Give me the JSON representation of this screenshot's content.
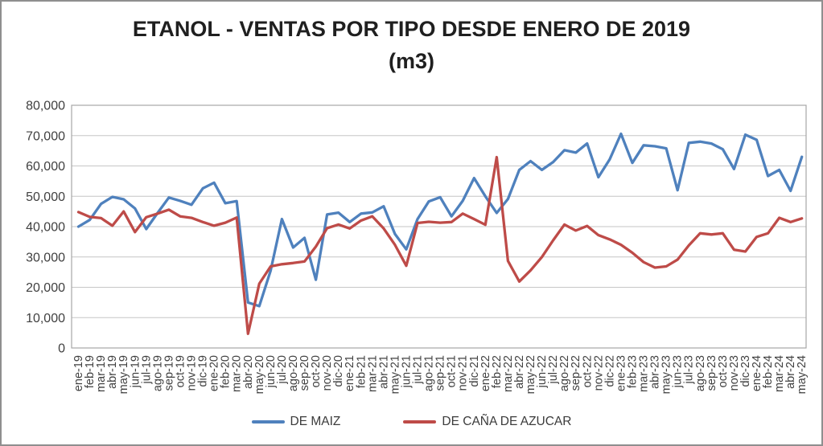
{
  "window": {
    "background": "#ffffff",
    "border_color": "#8f8f8f"
  },
  "title": {
    "line1": "ETANOL - VENTAS POR TIPO DESDE ENERO DE 2019",
    "line2": "(m3)"
  },
  "legend": {
    "items": [
      {
        "label": "DE MAIZ",
        "color": "#4F81BD"
      },
      {
        "label": "DE CAÑA DE AZUCAR",
        "color": "#BE4B48"
      }
    ]
  },
  "chart_data": {
    "type": "line",
    "title": "ETANOL - VENTAS POR TIPO DESDE ENERO DE 2019 (m3)",
    "xlabel": "",
    "ylabel": "",
    "ylim": [
      0,
      80000
    ],
    "y_tick_step": 10000,
    "y_tick_labels": [
      "0",
      "10,000",
      "20,000",
      "30,000",
      "40,000",
      "50,000",
      "60,000",
      "70,000",
      "80,000"
    ],
    "grid": "horizontal",
    "legend_position": "bottom",
    "axis_label_color": "#404040",
    "gridline_color": "#c6c6c6",
    "axis_line_color": "#a6a6a6",
    "categories": [
      "ene-19",
      "feb-19",
      "mar-19",
      "abr-19",
      "may-19",
      "jun-19",
      "jul-19",
      "ago-19",
      "sep-19",
      "oct-19",
      "nov-19",
      "dic-19",
      "ene-20",
      "feb-20",
      "mar-20",
      "abr-20",
      "may-20",
      "jun-20",
      "jul-20",
      "ago-20",
      "sep-20",
      "oct-20",
      "nov-20",
      "dic-20",
      "ene-21",
      "feb-21",
      "mar-21",
      "abr-21",
      "may-21",
      "jun-21",
      "jul-21",
      "ago-21",
      "sep-21",
      "oct-21",
      "nov-21",
      "dic-21",
      "ene-22",
      "feb-22",
      "mar-22",
      "abr-22",
      "may-22",
      "jun-22",
      "jul-22",
      "ago-22",
      "sep-22",
      "oct-22",
      "nov-22",
      "dic-22",
      "ene-23",
      "feb-23",
      "mar-23",
      "abr-23",
      "may-23",
      "jun-23",
      "jul-23",
      "ago-23",
      "sep-23",
      "oct-23",
      "nov-23",
      "dic-23",
      "ene-24",
      "feb-24",
      "mar-24",
      "abr-24",
      "may-24"
    ],
    "series": [
      {
        "name": "DE MAIZ",
        "color": "#4F81BD",
        "values": [
          40000,
          42200,
          47500,
          49800,
          49000,
          46000,
          39200,
          44500,
          49600,
          48500,
          47200,
          52600,
          54500,
          47700,
          48400,
          15000,
          13800,
          25500,
          42500,
          33100,
          36300,
          22500,
          44000,
          44600,
          41500,
          44300,
          44700,
          46700,
          37600,
          32500,
          42500,
          48300,
          49700,
          43400,
          48500,
          56000,
          50000,
          44500,
          49100,
          58700,
          61600,
          58700,
          61300,
          65200,
          64400,
          67400,
          56300,
          62200,
          70600,
          61000,
          66800,
          66500,
          65800,
          52000,
          67600,
          68000,
          67400,
          65500,
          59000,
          70300,
          68600,
          56700,
          58700,
          51800,
          63000
        ]
      },
      {
        "name": "DE CAÑA DE AZUCAR",
        "color": "#BE4B48",
        "values": [
          44800,
          43200,
          42800,
          40300,
          45000,
          38200,
          43100,
          44300,
          45600,
          43400,
          42900,
          41500,
          40300,
          41300,
          43000,
          4700,
          21200,
          26900,
          27600,
          28000,
          28500,
          33400,
          39500,
          40700,
          39400,
          42000,
          43400,
          39400,
          34000,
          27100,
          41200,
          41600,
          41300,
          41500,
          44300,
          42500,
          40600,
          62900,
          28700,
          21900,
          25600,
          30000,
          35500,
          40700,
          38700,
          40200,
          37200,
          35800,
          34000,
          31400,
          28300,
          26500,
          26900,
          29100,
          33800,
          37800,
          37400,
          37800,
          32400,
          31800,
          36600,
          37800,
          42900,
          41500,
          42700
        ]
      }
    ]
  }
}
